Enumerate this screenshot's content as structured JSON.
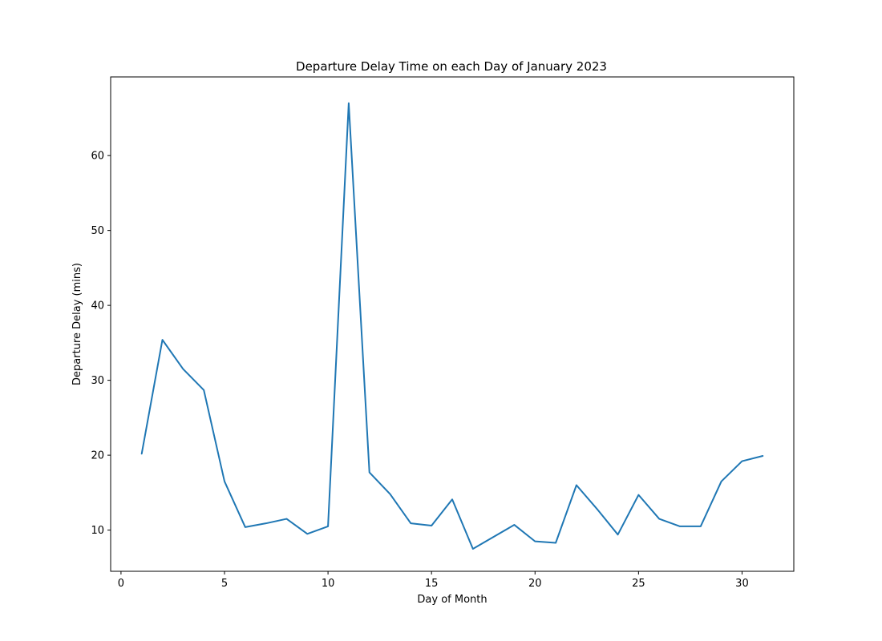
{
  "chart_data": {
    "type": "line",
    "title": "Departure Delay Time on each Day of January 2023",
    "xlabel": "Day of Month",
    "ylabel": "Departure Delay (mins)",
    "xlim": [
      -0.5,
      32.5
    ],
    "ylim": [
      4.5,
      70.5
    ],
    "xticks": [
      0,
      5,
      10,
      15,
      20,
      25,
      30
    ],
    "yticks": [
      10,
      20,
      30,
      40,
      50,
      60
    ],
    "grid": false,
    "legend": "none",
    "series": [
      {
        "color": "#1f77b4",
        "x": [
          1,
          2,
          3,
          4,
          5,
          6,
          7,
          8,
          9,
          10,
          11,
          12,
          13,
          14,
          15,
          16,
          17,
          18,
          19,
          20,
          21,
          22,
          23,
          24,
          25,
          26,
          27,
          28,
          29,
          30,
          31
        ],
        "y": [
          20.2,
          35.4,
          31.5,
          28.7,
          16.5,
          10.4,
          10.9,
          11.5,
          9.5,
          10.5,
          67.0,
          17.7,
          14.8,
          10.9,
          10.6,
          14.1,
          7.5,
          9.1,
          10.7,
          8.5,
          8.3,
          16.0,
          12.8,
          9.4,
          14.7,
          11.5,
          10.5,
          10.5,
          16.5,
          19.2,
          19.9
        ]
      }
    ]
  }
}
